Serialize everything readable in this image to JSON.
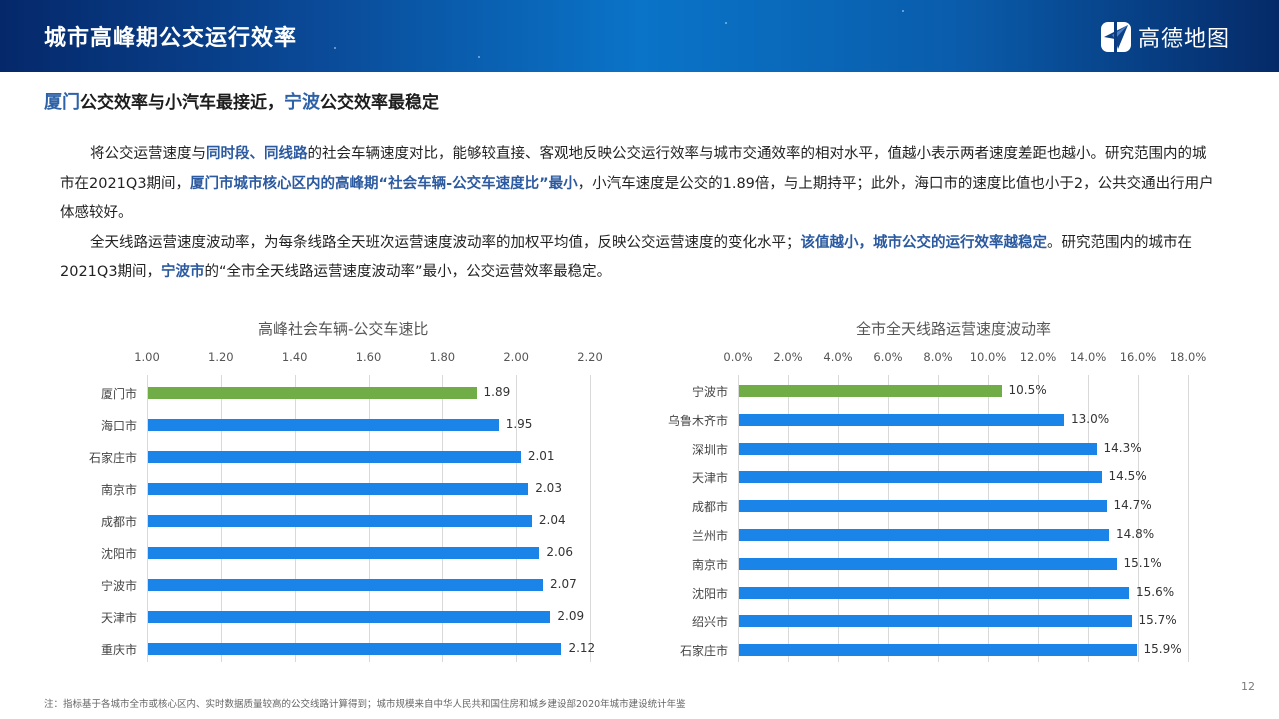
{
  "header": {
    "title": "城市高峰期公交运行效率",
    "logo_text": "高德地图",
    "logo_icon": "amap-paper-plane-logo-icon"
  },
  "subtitle": {
    "part1_highlight": "厦门",
    "part2": "公交效率与小汽车最接近，",
    "part3_highlight": "宁波",
    "part4": "公交效率最稳定"
  },
  "body": {
    "p1": {
      "s1": "将公交运营速度与",
      "b1": "同时段、同线路",
      "s2": "的社会车辆速度对比，能够较直接、客观地反映公交运行效率与城市交通效率的相对水平，值越小表示两者速度差距也越小。研究范围内的城市在2021Q3期间，",
      "b2": "厦门市城市核心区内的高峰期“社会车辆-公交车速度比”最小",
      "s3": "，小汽车速度是公交的1.89倍，与上期持平；此外，海口市的速度比值也小于2，公共交通出行用户体感较好。"
    },
    "p2": {
      "s1": "全天线路运营速度波动率，为每条线路全天班次运营速度波动率的加权平均值，反映公交运营速度的变化水平；",
      "b1": "该值越小，城市公交的运行效率越稳定",
      "s2": "。研究范围内的城市在2021Q3期间，",
      "b2": "宁波市",
      "s3": "的“全市全天线路运营速度波动率”最小，公交运营效率最稳定。"
    }
  },
  "colors": {
    "highlight_bar": "#70ad47",
    "bar": "#1a84e8",
    "accent_text": "#2c5aa0"
  },
  "chart_data": [
    {
      "type": "bar",
      "orientation": "horizontal",
      "title": "高峰社会车辆-公交车速比",
      "categories": [
        "厦门市",
        "海口市",
        "石家庄市",
        "南京市",
        "成都市",
        "沈阳市",
        "宁波市",
        "天津市",
        "重庆市"
      ],
      "values": [
        1.89,
        1.95,
        2.01,
        2.03,
        2.04,
        2.06,
        2.07,
        2.09,
        2.12
      ],
      "value_labels": [
        "1.89",
        "1.95",
        "2.01",
        "2.03",
        "2.04",
        "2.06",
        "2.07",
        "2.09",
        "2.12"
      ],
      "xlim": [
        1.0,
        2.2
      ],
      "xticks": [
        "1.00",
        "1.20",
        "1.40",
        "1.60",
        "1.80",
        "2.00",
        "2.20"
      ],
      "axis_position": "top",
      "grid": true,
      "highlight_index": 0,
      "xlabel": "",
      "ylabel": ""
    },
    {
      "type": "bar",
      "orientation": "horizontal",
      "title": "全市全天线路运营速度波动率",
      "categories": [
        "宁波市",
        "乌鲁木齐市",
        "深圳市",
        "天津市",
        "成都市",
        "兰州市",
        "南京市",
        "沈阳市",
        "绍兴市",
        "石家庄市"
      ],
      "values": [
        10.5,
        13.0,
        14.3,
        14.5,
        14.7,
        14.8,
        15.1,
        15.6,
        15.7,
        15.9
      ],
      "value_labels": [
        "10.5%",
        "13.0%",
        "14.3%",
        "14.5%",
        "14.7%",
        "14.8%",
        "15.1%",
        "15.6%",
        "15.7%",
        "15.9%"
      ],
      "xlim": [
        0,
        18
      ],
      "xticks": [
        "0.0%",
        "2.0%",
        "4.0%",
        "6.0%",
        "8.0%",
        "10.0%",
        "12.0%",
        "14.0%",
        "16.0%",
        "18.0%"
      ],
      "axis_position": "top",
      "grid": true,
      "highlight_index": 0,
      "xlabel": "",
      "ylabel": ""
    }
  ],
  "footnote": "注：指标基于各城市全市或核心区内、实时数据质量较高的公交线路计算得到；城市规模来自中华人民共和国住房和城乡建设部2020年城市建设统计年鉴",
  "page_number": "12"
}
